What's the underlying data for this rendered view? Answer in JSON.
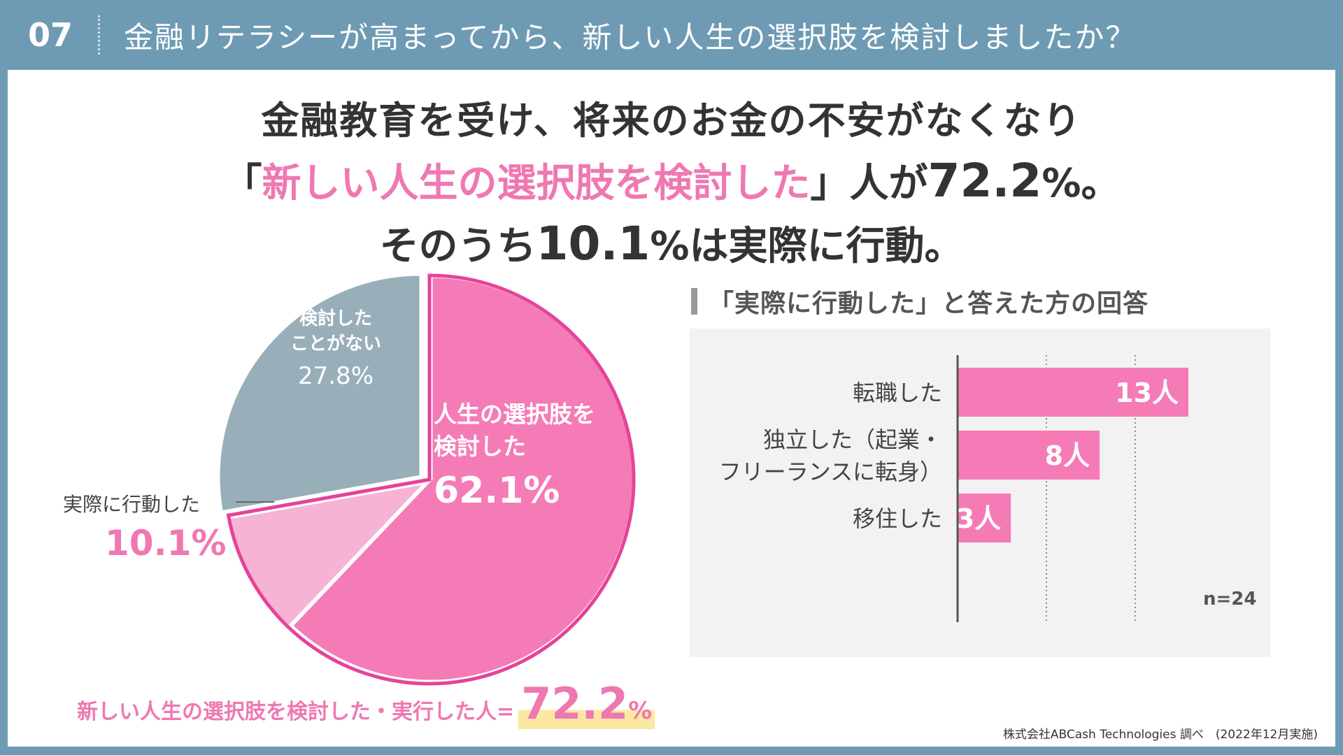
{
  "header": {
    "question_number": "07",
    "question_text": "金融リテラシーが高まってから、新しい人生の選択肢を検討しましたか？"
  },
  "headline": {
    "line1": "金融教育を受け、将来のお金の不安がなくなり",
    "line2_open": "「",
    "line2_highlight": "新しい人生の選択肢を検討した",
    "line2_close": "」人が",
    "line2_value": "72.2",
    "line2_unit": "%。",
    "line3_lead": "そのうち",
    "line3_value": "10.1",
    "line3_unit": "%",
    "line3_tail": "は実際に行動。"
  },
  "pie_labels": {
    "never_line1": "検討した",
    "never_line2": "ことがない",
    "never_value": "27.8%",
    "considered_line1": "人生の選択肢を",
    "considered_line2": "検討した",
    "considered_value": "62.1%",
    "acted_label": "実際に行動した",
    "acted_value": "10.1%"
  },
  "bars_section": {
    "title": "「実際に行動した」と答えた方の回答",
    "n_label": "n=24"
  },
  "summary": {
    "label": "新しい人生の選択肢を検討した・実行した人=",
    "value": "72.2",
    "unit": "%"
  },
  "credit": "株式会社ABCash Technologies 調べ　(2022年12月実施)",
  "colors": {
    "pink": "#f57bb6",
    "pink_light": "#f7b3d4",
    "gray": "#98afba",
    "pink_text": "#ef78b2",
    "outline": "#e5439a"
  },
  "chart_data": [
    {
      "type": "pie",
      "title": "新しい人生の選択肢を検討しましたか？",
      "slices": [
        {
          "label": "人生の選択肢を検討した",
          "value": 62.1
        },
        {
          "label": "実際に行動した",
          "value": 10.1
        },
        {
          "label": "検討したことがない",
          "value": 27.8
        }
      ],
      "unit": "%"
    },
    {
      "type": "bar",
      "orientation": "horizontal",
      "title": "「実際に行動した」と答えた方の回答",
      "categories": [
        "転職した",
        "独立した（起業・フリーランスに転身）",
        "移住した"
      ],
      "category_lines": [
        [
          "転職した"
        ],
        [
          "独立した（起業・",
          "フリーランスに転身）"
        ],
        [
          "移住した"
        ]
      ],
      "values": [
        13,
        8,
        3
      ],
      "unit": "人",
      "xlim": [
        0,
        16
      ],
      "n": 24
    }
  ]
}
